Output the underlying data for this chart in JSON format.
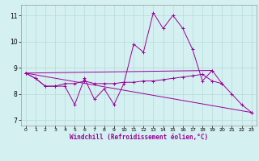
{
  "x": [
    0,
    1,
    2,
    3,
    4,
    5,
    6,
    7,
    8,
    9,
    10,
    11,
    12,
    13,
    14,
    15,
    16,
    17,
    18,
    19,
    20,
    21,
    22,
    23
  ],
  "line1": [
    8.8,
    8.6,
    8.3,
    8.3,
    8.3,
    7.6,
    8.6,
    7.8,
    8.2,
    7.6,
    8.4,
    9.9,
    9.6,
    11.1,
    10.5,
    11.0,
    10.5,
    9.7,
    8.5,
    8.9,
    8.4,
    8.0,
    7.6,
    7.3
  ],
  "line2_x": [
    0,
    1,
    2,
    3,
    4,
    5,
    6,
    7,
    8,
    9,
    10,
    11,
    12,
    13,
    14,
    15,
    16,
    17,
    18,
    19,
    20
  ],
  "line2_y": [
    8.8,
    8.6,
    8.3,
    8.3,
    8.4,
    8.4,
    8.5,
    8.4,
    8.4,
    8.4,
    8.45,
    8.45,
    8.5,
    8.5,
    8.55,
    8.6,
    8.65,
    8.7,
    8.75,
    8.5,
    8.4
  ],
  "line3_x": [
    0,
    23
  ],
  "line3_y": [
    8.8,
    7.3
  ],
  "line4_x": [
    0,
    19
  ],
  "line4_y": [
    8.8,
    8.9
  ],
  "color": "#990099",
  "bg_color": "#d4f0f0",
  "grid_color": "#b8dada",
  "xlabel": "Windchill (Refroidissement éolien,°C)",
  "yticks": [
    7,
    8,
    9,
    10,
    11
  ],
  "xticks": [
    0,
    1,
    2,
    3,
    4,
    5,
    6,
    7,
    8,
    9,
    10,
    11,
    12,
    13,
    14,
    15,
    16,
    17,
    18,
    19,
    20,
    21,
    22,
    23
  ],
  "ylim": [
    6.8,
    11.4
  ],
  "xlim": [
    -0.5,
    23.5
  ]
}
